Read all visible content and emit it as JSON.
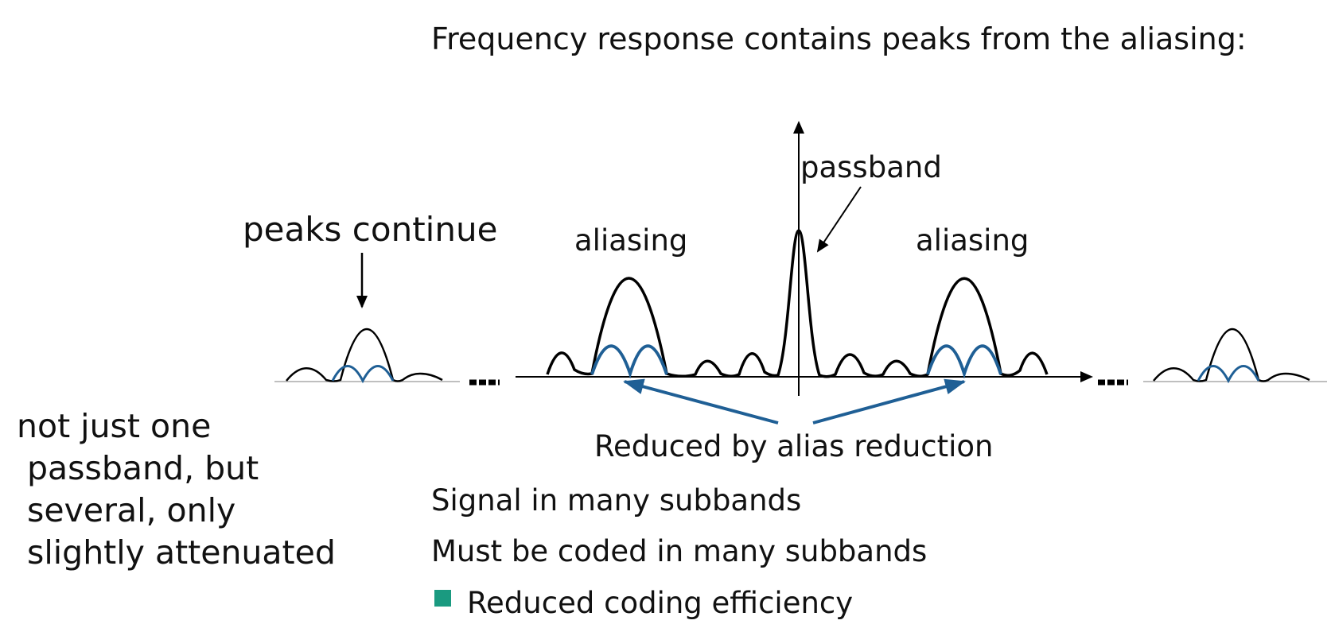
{
  "title": "Frequency response contains peaks from the aliasing:",
  "labels": {
    "passband": "passband",
    "peaks_continue": "peaks continue",
    "aliasing_left": "aliasing",
    "aliasing_right": "aliasing",
    "reduced_by_alias_reduction": "Reduced by alias reduction"
  },
  "side_note": [
    "not just one",
    " passband, but",
    " several, only",
    " slightly attenuated"
  ],
  "bullets": [
    "Signal in many subbands",
    "Must be coded in many subbands",
    "Reduced coding efficiency"
  ],
  "bullet_marker": "square-bullet-icon",
  "colors": {
    "text": "#111111",
    "response_curve": "#000000",
    "reduced_curve": "#1f5f95",
    "annotation_arrow": "#1f5f95",
    "bullet": "#1a9a80"
  }
}
